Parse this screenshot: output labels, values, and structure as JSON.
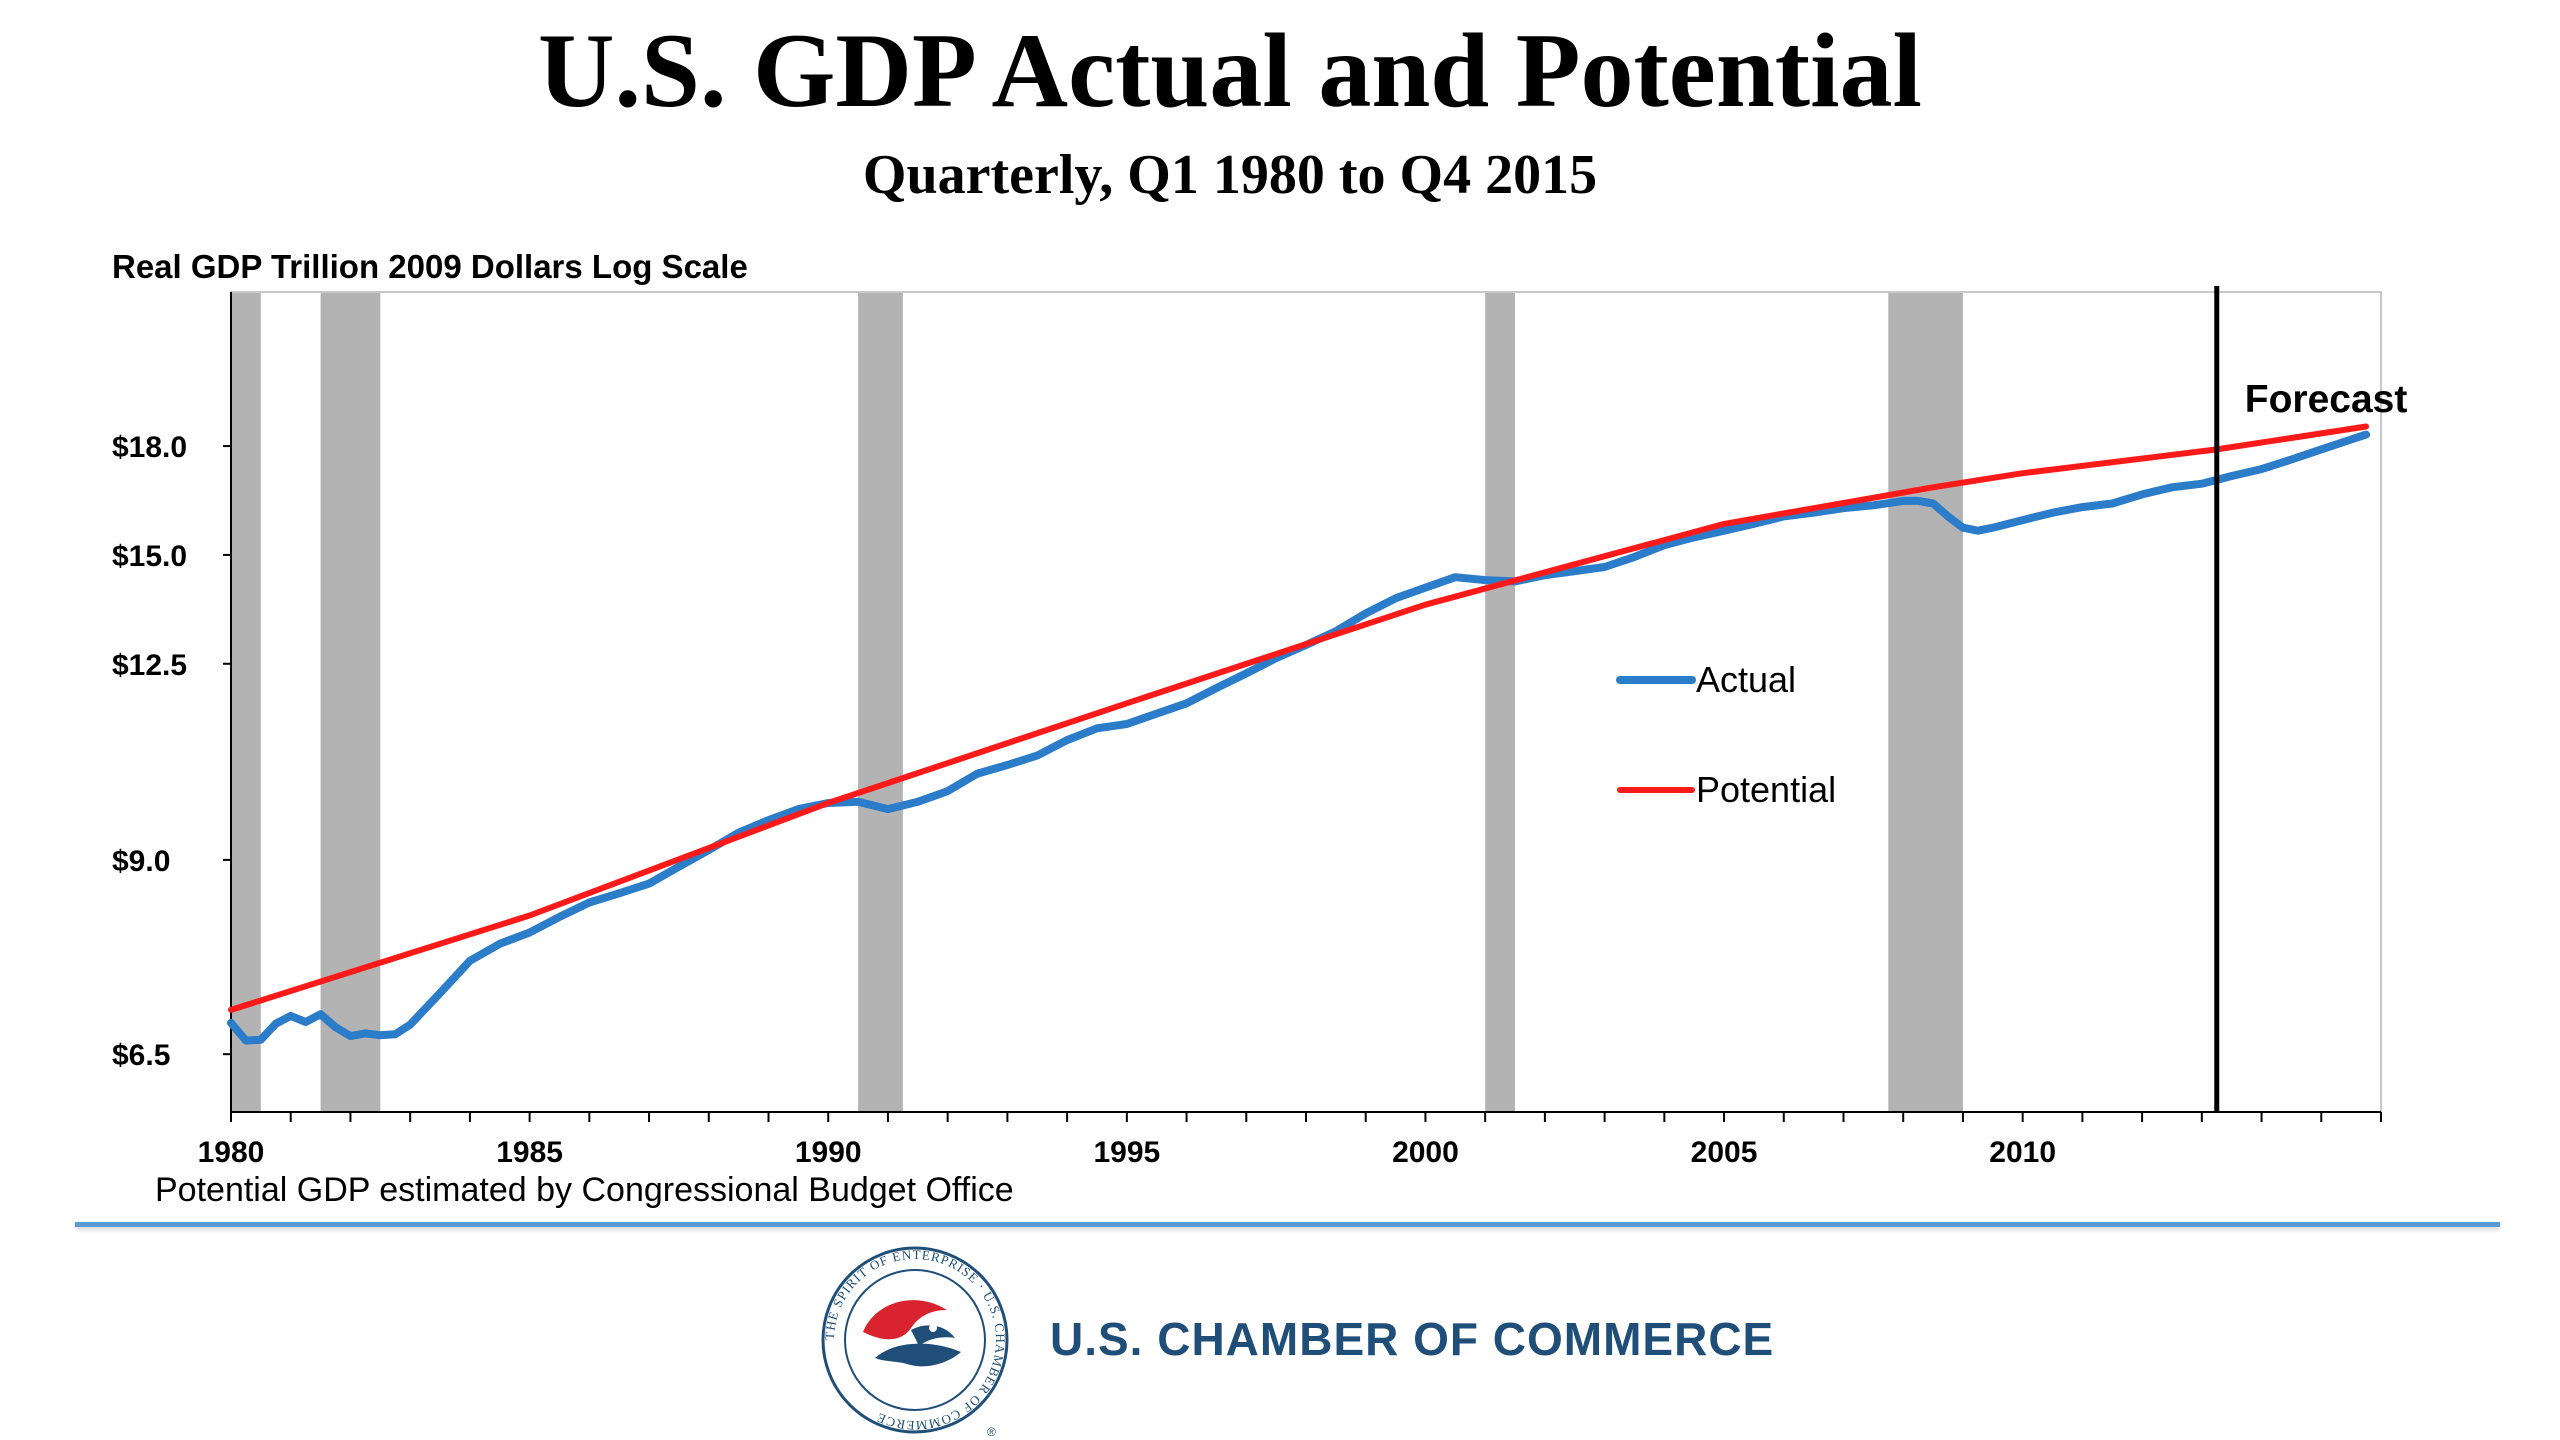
{
  "slide": {
    "title": "U.S. GDP Actual and Potential",
    "subtitle": "Quarterly, Q1 1980 to Q4 2015",
    "note": "Potential GDP estimated by Congressional Budget Office",
    "brand": "U.S. CHAMBER OF COMMERCE",
    "seal_text": "THE SPIRIT OF ENTERPRISE · U.S. CHAMBER OF COMMERCE",
    "colors": {
      "actual": "#2b7cc9",
      "potential": "#ff1a1a",
      "recession": "#b3b3b3",
      "rule": "#5b9bd5",
      "brand": "#1f4e79"
    }
  },
  "chart_data": {
    "type": "line",
    "ylabel": "Real GDP Trillion 2009 Dollars Log Scale",
    "y_scale": "log",
    "y_ticks": [
      6.5,
      9.0,
      12.5,
      15.0,
      18.0
    ],
    "y_tick_labels": [
      "$6.5",
      "$9.0",
      "$12.5",
      "$15.0",
      "$18.0"
    ],
    "x_ticks": [
      1980,
      1985,
      1990,
      1995,
      2000,
      2005,
      2010
    ],
    "x_tick_labels": [
      "1980",
      "1985",
      "1990",
      "1995",
      "2000",
      "2005",
      "2010"
    ],
    "xlim": [
      1980,
      2016
    ],
    "ylim": [
      5.9,
      23.3
    ],
    "grid": false,
    "legend_position": "center-right",
    "annotation": "Forecast",
    "forecast_start": 2013.25,
    "recessions": [
      [
        1980.0,
        1980.5
      ],
      [
        1981.5,
        1982.5
      ],
      [
        1990.5,
        1991.25
      ],
      [
        2001.0,
        2001.5
      ],
      [
        2007.75,
        2009.0
      ]
    ],
    "series": [
      {
        "name": "Actual",
        "x": [
          1980.0,
          1980.25,
          1980.5,
          1980.75,
          1981.0,
          1981.25,
          1981.5,
          1981.75,
          1982.0,
          1982.25,
          1982.5,
          1982.75,
          1983.0,
          1983.5,
          1984.0,
          1984.5,
          1985.0,
          1985.5,
          1986.0,
          1986.5,
          1987.0,
          1987.5,
          1988.0,
          1988.5,
          1989.0,
          1989.5,
          1990.0,
          1990.5,
          1991.0,
          1991.5,
          1992.0,
          1992.5,
          1993.0,
          1993.5,
          1994.0,
          1994.5,
          1995.0,
          1995.5,
          1996.0,
          1996.5,
          1997.0,
          1997.5,
          1998.0,
          1998.5,
          1999.0,
          1999.5,
          2000.0,
          2000.5,
          2001.0,
          2001.5,
          2002.0,
          2002.5,
          2003.0,
          2003.5,
          2004.0,
          2004.5,
          2005.0,
          2005.5,
          2006.0,
          2006.5,
          2007.0,
          2007.5,
          2008.0,
          2008.25,
          2008.5,
          2008.75,
          2009.0,
          2009.25,
          2009.5,
          2010.0,
          2010.5,
          2011.0,
          2011.5,
          2012.0,
          2012.5,
          2013.0,
          2013.5,
          2014.0,
          2014.5,
          2015.0,
          2015.5,
          2015.75
        ],
        "values": [
          6.85,
          6.65,
          6.66,
          6.84,
          6.93,
          6.86,
          6.95,
          6.8,
          6.7,
          6.73,
          6.71,
          6.72,
          6.83,
          7.2,
          7.6,
          7.82,
          7.97,
          8.18,
          8.38,
          8.51,
          8.65,
          8.9,
          9.15,
          9.42,
          9.62,
          9.8,
          9.9,
          9.92,
          9.8,
          9.92,
          10.1,
          10.4,
          10.55,
          10.72,
          11.0,
          11.22,
          11.3,
          11.5,
          11.7,
          12.0,
          12.3,
          12.62,
          12.9,
          13.2,
          13.6,
          13.95,
          14.2,
          14.45,
          14.38,
          14.35,
          14.5,
          14.6,
          14.7,
          14.95,
          15.25,
          15.45,
          15.62,
          15.8,
          16.0,
          16.1,
          16.22,
          16.3,
          16.42,
          16.42,
          16.35,
          16.0,
          15.7,
          15.62,
          15.7,
          15.9,
          16.1,
          16.25,
          16.35,
          16.6,
          16.8,
          16.9,
          17.12,
          17.32,
          17.6,
          17.9,
          18.2,
          18.35
        ]
      },
      {
        "name": "Potential",
        "x": [
          1980.0,
          1985.0,
          1990.0,
          1995.0,
          2000.0,
          2005.0,
          2008.5,
          2010.0,
          2013.25,
          2015.75
        ],
        "values": [
          7.0,
          8.2,
          9.9,
          11.7,
          13.8,
          15.8,
          16.8,
          17.2,
          17.9,
          18.6
        ]
      }
    ]
  }
}
